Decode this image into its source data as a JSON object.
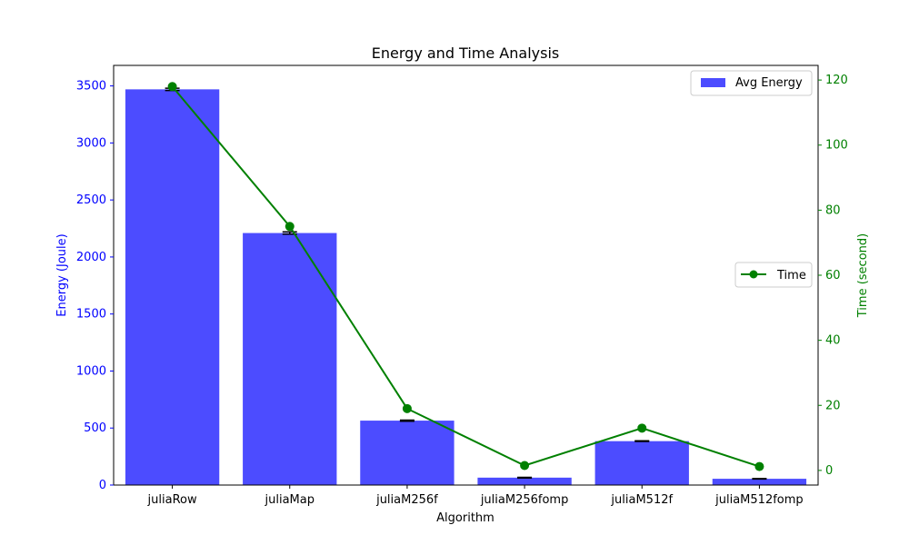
{
  "chart_data": {
    "type": "bar",
    "title": "Energy and Time Analysis",
    "xlabel": "Algorithm",
    "ylabel_left": "Energy (Joule)",
    "ylabel_right": "Time (second)",
    "categories": [
      "juliaRow",
      "juliaMap",
      "juliaM256f",
      "juliaM256fomp",
      "juliaM512f",
      "juliaM512fomp"
    ],
    "ylim_left": [
      0,
      3680
    ],
    "ylim_right": [
      -4.5,
      124.5
    ],
    "yticks_left": [
      "0",
      "500",
      "1000",
      "1500",
      "2000",
      "2500",
      "3000",
      "3500"
    ],
    "yticks_right": [
      "0",
      "20",
      "40",
      "60",
      "80",
      "100",
      "120"
    ],
    "series": [
      {
        "name": "Avg Energy",
        "type": "bar",
        "axis": "left",
        "color": "#0000ff",
        "opacity": 0.7,
        "values": [
          3470,
          2210,
          565,
          65,
          385,
          55
        ],
        "error": [
          10,
          10,
          5,
          3,
          3,
          2
        ]
      },
      {
        "name": "Time",
        "type": "line",
        "axis": "right",
        "color": "#008000",
        "marker": "circle",
        "values": [
          118,
          75,
          19,
          1.5,
          13,
          1.2
        ]
      }
    ],
    "legend": [
      {
        "label": "Avg Energy",
        "placement": "top-right"
      },
      {
        "label": "Time",
        "placement": "center-right"
      }
    ],
    "grid": false
  }
}
